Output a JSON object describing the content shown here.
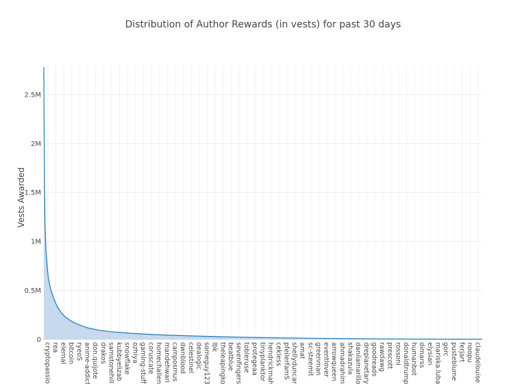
{
  "chart_data": {
    "type": "area",
    "title": "Distribution of Author Rewards (in vests) for past 30 days",
    "xlabel": "",
    "ylabel": "Vests Awarded",
    "ylim": [
      0,
      2800000
    ],
    "y_ticks": [
      {
        "value": 0,
        "label": "0"
      },
      {
        "value": 500000,
        "label": "0.5M"
      },
      {
        "value": 1000000,
        "label": "1M"
      },
      {
        "value": 1500000,
        "label": "1.5M"
      },
      {
        "value": 2000000,
        "label": "2M"
      },
      {
        "value": 2500000,
        "label": "2.5M"
      }
    ],
    "grid": true,
    "legend": "none",
    "series": [
      {
        "line_color": "#1f77b4",
        "fill_color": "#c6d9ee",
        "points": [
          {
            "x": 0,
            "y": 2780000
          },
          {
            "x": 2,
            "y": 1850000
          },
          {
            "x": 5,
            "y": 1200000
          },
          {
            "x": 10,
            "y": 900000
          },
          {
            "x": 15,
            "y": 750000
          },
          {
            "x": 20,
            "y": 640000
          },
          {
            "x": 30,
            "y": 520000
          },
          {
            "x": 45,
            "y": 420000
          },
          {
            "x": 60,
            "y": 340000
          },
          {
            "x": 80,
            "y": 270000
          },
          {
            "x": 100,
            "y": 225000
          },
          {
            "x": 130,
            "y": 180000
          },
          {
            "x": 160,
            "y": 150000
          },
          {
            "x": 200,
            "y": 118000
          },
          {
            "x": 250,
            "y": 95000
          },
          {
            "x": 300,
            "y": 80000
          },
          {
            "x": 400,
            "y": 62000
          },
          {
            "x": 500,
            "y": 50000
          },
          {
            "x": 600,
            "y": 41000
          },
          {
            "x": 700,
            "y": 34000
          },
          {
            "x": 800,
            "y": 28000
          },
          {
            "x": 900,
            "y": 23000
          },
          {
            "x": 1000,
            "y": 19000
          },
          {
            "x": 1100,
            "y": 15500
          },
          {
            "x": 1200,
            "y": 12500
          },
          {
            "x": 1300,
            "y": 10000
          },
          {
            "x": 1400,
            "y": 8000
          },
          {
            "x": 1500,
            "y": 6500
          },
          {
            "x": 1600,
            "y": 5000
          },
          {
            "x": 1700,
            "y": 4000
          },
          {
            "x": 1800,
            "y": 3200
          },
          {
            "x": 1900,
            "y": 2600
          },
          {
            "x": 2000,
            "y": 2000
          }
        ]
      }
    ],
    "categories": [
      "cryptopassio",
      "rea",
      "elemal",
      "bitcoin",
      "ryeoS",
      "anime-addict",
      "don.quijote",
      "drakos",
      "samstonehill",
      "kubbyelizab",
      "snowflake",
      "ozhiya",
      "gaming-stuff",
      "coruscate",
      "homechallen",
      "mandehwari",
      "camposmus",
      "dwnblood",
      "celestinel",
      "dealogic",
      "someguy123",
      "lbk",
      "theleapingko",
      "beatblue",
      "sevenfingers",
      "tobleruse",
      "protegeaa",
      "tinyplanktor",
      "hendrickmahi",
      "cekless",
      "pfeilerfamS",
      "shellyduncan",
      "amat",
      "sc-steemit",
      "greenman",
      "eventlover",
      "arrowqueen",
      "ahmadrahim",
      "shakazula",
      "danilamarillo",
      "dreplanetary",
      "goodreads",
      "rawdawg",
      "prescott",
      "rossoni",
      "donaldtrump",
      "humanbot",
      "dimarss",
      "elysian",
      "mariska.luba",
      "gorc",
      "pusteblume",
      "ferjart",
      "noopu",
      "claudelouise"
    ]
  }
}
